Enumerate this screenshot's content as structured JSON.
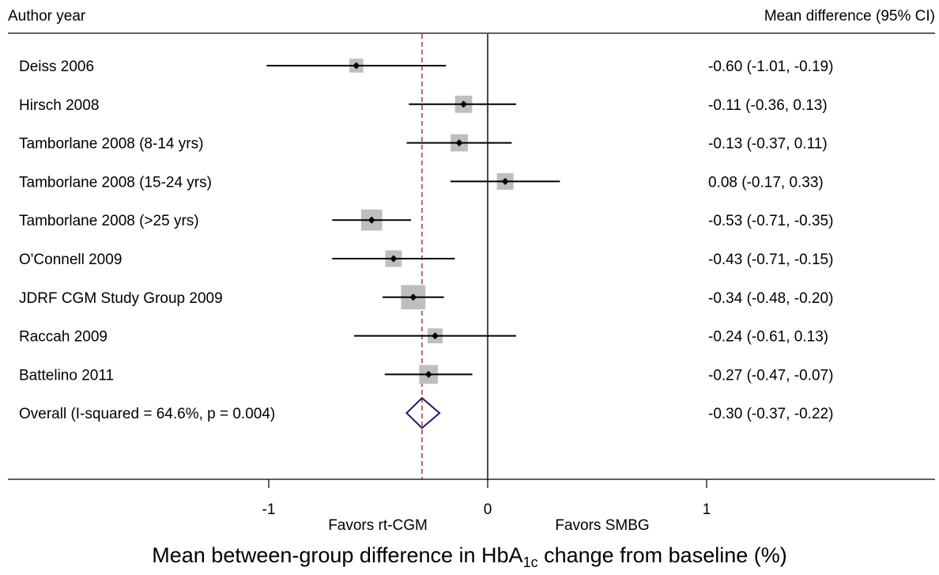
{
  "chart_data": {
    "type": "forest",
    "left_header": "Author year",
    "right_header": "Mean difference (95% CI)",
    "studies": [
      {
        "label": "Deiss 2006",
        "estimate": -0.6,
        "lower": -1.01,
        "upper": -0.19,
        "ci_text": "-0.60 (-1.01, -0.19)",
        "weight": 0.25
      },
      {
        "label": "Hirsch 2008",
        "estimate": -0.11,
        "lower": -0.36,
        "upper": 0.13,
        "ci_text": "-0.11 (-0.36, 0.13)",
        "weight": 0.55
      },
      {
        "label": "Tamborlane 2008 (8-14 yrs)",
        "estimate": -0.13,
        "lower": -0.37,
        "upper": 0.11,
        "ci_text": "-0.13 (-0.37, 0.11)",
        "weight": 0.55
      },
      {
        "label": "Tamborlane 2008 (15-24 yrs)",
        "estimate": 0.08,
        "lower": -0.17,
        "upper": 0.33,
        "ci_text": "0.08 (-0.17, 0.33)",
        "weight": 0.5
      },
      {
        "label": "Tamborlane 2008 (>25 yrs)",
        "estimate": -0.53,
        "lower": -0.71,
        "upper": -0.35,
        "ci_text": "-0.53 (-0.71, -0.35)",
        "weight": 0.9
      },
      {
        "label": "O'Connell 2009",
        "estimate": -0.43,
        "lower": -0.71,
        "upper": -0.15,
        "ci_text": "-0.43 (-0.71, -0.15)",
        "weight": 0.5
      },
      {
        "label": "JDRF CGM Study Group 2009",
        "estimate": -0.34,
        "lower": -0.48,
        "upper": -0.2,
        "ci_text": "-0.34 (-0.48, -0.20)",
        "weight": 1.2
      },
      {
        "label": "Raccah 2009",
        "estimate": -0.24,
        "lower": -0.61,
        "upper": 0.13,
        "ci_text": "-0.24 (-0.61, 0.13)",
        "weight": 0.35
      },
      {
        "label": "Battelino 2011",
        "estimate": -0.27,
        "lower": -0.47,
        "upper": -0.07,
        "ci_text": "-0.27 (-0.47, -0.07)",
        "weight": 0.7
      }
    ],
    "overall": {
      "label": "Overall (I-squared = 64.6%, p = 0.004)",
      "estimate": -0.3,
      "lower": -0.37,
      "upper": -0.22,
      "ci_text": "-0.30 (-0.37, -0.22)"
    },
    "x_ticks": [
      -1,
      0,
      1
    ],
    "xlim": [
      -2.2,
      2.05
    ],
    "favors_left": "Favors rt-CGM",
    "favors_right": "Favors SMBG",
    "xlabel_main": "Mean between-group difference in HbA",
    "xlabel_sub": "1c",
    "xlabel_tail": " change from baseline (%)",
    "colors": {
      "marker_box": "#bebebe",
      "line": "#000000",
      "dashed_ref": "#a52a2a",
      "diamond": "#1a1a6e"
    }
  }
}
